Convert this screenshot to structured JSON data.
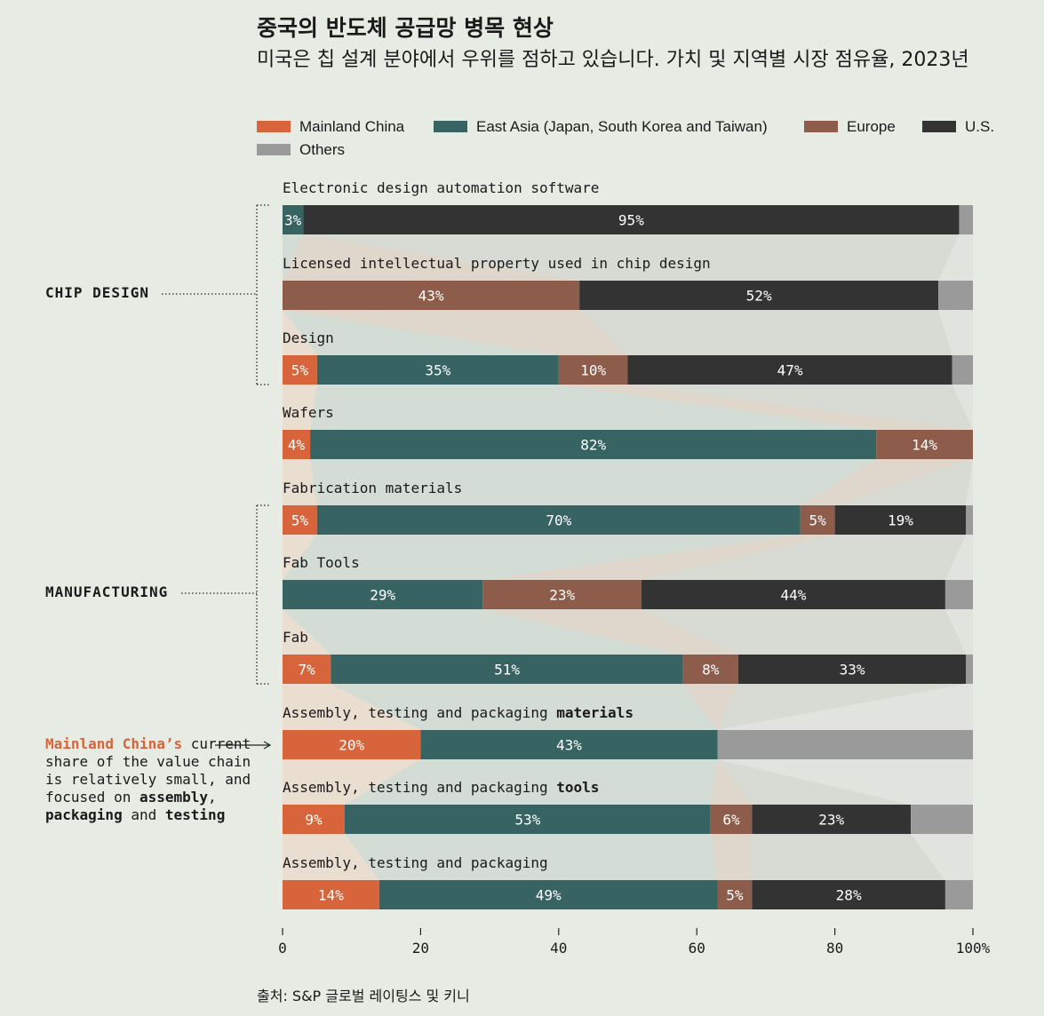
{
  "title": "중국의 반도체 공급망 병목 현상",
  "subtitle": "미국은 칩 설계 분야에서 우위를 점하고 있습니다. 가치 및 지역별 시장 점유율, 2023년",
  "legend": [
    {
      "name": "Mainland China",
      "color": "#d7643a"
    },
    {
      "name": "East Asia (Japan, South Korea and Taiwan)",
      "color": "#386363"
    },
    {
      "name": "Europe",
      "color": "#8e5c4a"
    },
    {
      "name": "U.S.",
      "color": "#333333"
    },
    {
      "name": "Others",
      "color": "#9a9a9a"
    }
  ],
  "groups": {
    "chip_design": "CHIP DESIGN",
    "manufacturing": "MANUFACTURING"
  },
  "note": {
    "highlight": "Mainland China’s",
    "line1": "current share of the value chain is relatively small, and focused on",
    "b1": "assembly",
    "sep": ", ",
    "b2": "packaging",
    "and": "and",
    "b3": "testing"
  },
  "source": "출처: S&P 글로벌 레이팅스 및 키니",
  "chart_data": {
    "type": "bar",
    "orientation": "horizontal",
    "stacked": true,
    "xlim": [
      0,
      100
    ],
    "xticks": [
      "0",
      "20",
      "40",
      "60",
      "80",
      "100%"
    ],
    "series_names": [
      "Mainland China",
      "East Asia (Japan, South Korea and Taiwan)",
      "Europe",
      "U.S.",
      "Others"
    ],
    "rows": [
      {
        "label": "Electronic design automation software",
        "bold": "",
        "values": [
          0,
          3,
          0,
          95,
          2
        ],
        "labels": [
          "",
          "3%",
          "",
          "95%",
          ""
        ]
      },
      {
        "label": "Licensed intellectual property used in chip design",
        "bold": "",
        "values": [
          0,
          0,
          43,
          52,
          5
        ],
        "labels": [
          "",
          "",
          "43%",
          "52%",
          ""
        ]
      },
      {
        "label": "Design",
        "bold": "",
        "values": [
          5,
          35,
          10,
          47,
          3
        ],
        "labels": [
          "5%",
          "35%",
          "10%",
          "47%",
          ""
        ]
      },
      {
        "label": "Wafers",
        "bold": "",
        "values": [
          4,
          82,
          14,
          0,
          0
        ],
        "labels": [
          "4%",
          "82%",
          "14%",
          "",
          ""
        ]
      },
      {
        "label": "Fabrication materials",
        "bold": "",
        "values": [
          5,
          70,
          5,
          19,
          1
        ],
        "labels": [
          "5%",
          "70%",
          "5%",
          "19%",
          ""
        ]
      },
      {
        "label": "Fab Tools",
        "bold": "",
        "values": [
          0,
          29,
          23,
          44,
          4
        ],
        "labels": [
          "",
          "29%",
          "23%",
          "44%",
          ""
        ]
      },
      {
        "label": "Fab",
        "bold": "",
        "values": [
          7,
          51,
          8,
          33,
          1
        ],
        "labels": [
          "7%",
          "51%",
          "8%",
          "33%",
          ""
        ]
      },
      {
        "label": "Assembly, testing and packaging ",
        "bold": "materials",
        "values": [
          20,
          43,
          0,
          0,
          37
        ],
        "labels": [
          "20%",
          "43%",
          "",
          "",
          ""
        ]
      },
      {
        "label": "Assembly, testing and packaging ",
        "bold": "tools",
        "values": [
          9,
          53,
          6,
          23,
          9
        ],
        "labels": [
          "9%",
          "53%",
          "6%",
          "23%",
          ""
        ]
      },
      {
        "label": "Assembly, testing and packaging",
        "bold": "",
        "values": [
          14,
          49,
          5,
          28,
          4
        ],
        "labels": [
          "14%",
          "49%",
          "5%",
          "28%",
          ""
        ]
      }
    ]
  }
}
